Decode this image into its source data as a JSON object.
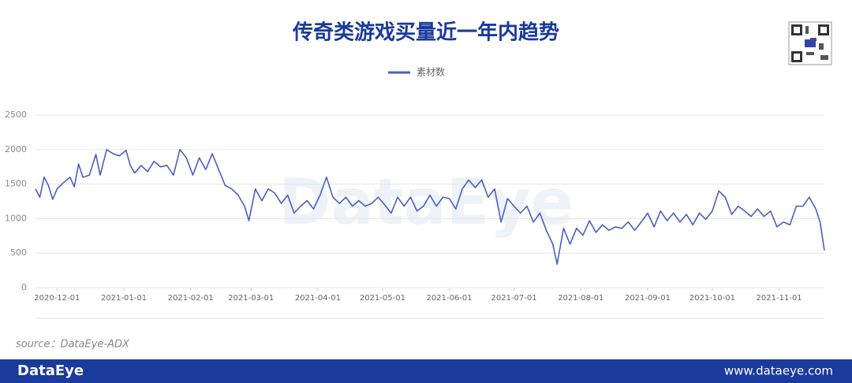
{
  "chart_data": {
    "type": "line",
    "title": "传奇类游戏买量近一年内趋势",
    "source": "source：DataEye-ADX",
    "watermark": "DataEye",
    "footer_brand": "DataEye",
    "footer_url": "www.dataeye.com",
    "grid": true,
    "legend_position": "top",
    "xlim": [
      "2020-11-21",
      "2021-11-22"
    ],
    "xticks": [
      "2020-12-01",
      "2021-01-01",
      "2021-02-01",
      "2021-03-01",
      "2021-04-01",
      "2021-05-01",
      "2021-06-01",
      "2021-07-01",
      "2021-08-01",
      "2021-09-01",
      "2021-10-01",
      "2021-11-01"
    ],
    "ylim": [
      0,
      2500
    ],
    "yticks": [
      0,
      500,
      1000,
      1500,
      2000,
      2500
    ],
    "x": [
      "2020-11-21",
      "2020-11-23",
      "2020-11-25",
      "2020-11-27",
      "2020-11-29",
      "2020-12-01",
      "2020-12-04",
      "2020-12-07",
      "2020-12-09",
      "2020-12-11",
      "2020-12-13",
      "2020-12-16",
      "2020-12-19",
      "2020-12-21",
      "2020-12-24",
      "2020-12-27",
      "2020-12-30",
      "2021-01-02",
      "2021-01-04",
      "2021-01-06",
      "2021-01-09",
      "2021-01-12",
      "2021-01-15",
      "2021-01-18",
      "2021-01-21",
      "2021-01-24",
      "2021-01-27",
      "2021-01-30",
      "2021-02-02",
      "2021-02-05",
      "2021-02-08",
      "2021-02-11",
      "2021-02-14",
      "2021-02-17",
      "2021-02-20",
      "2021-02-23",
      "2021-02-26",
      "2021-02-28",
      "2021-03-03",
      "2021-03-06",
      "2021-03-09",
      "2021-03-12",
      "2021-03-15",
      "2021-03-18",
      "2021-03-21",
      "2021-03-24",
      "2021-03-27",
      "2021-03-30",
      "2021-04-02",
      "2021-04-05",
      "2021-04-08",
      "2021-04-11",
      "2021-04-14",
      "2021-04-17",
      "2021-04-20",
      "2021-04-23",
      "2021-04-26",
      "2021-04-29",
      "2021-05-02",
      "2021-05-05",
      "2021-05-08",
      "2021-05-11",
      "2021-05-14",
      "2021-05-17",
      "2021-05-20",
      "2021-05-23",
      "2021-05-26",
      "2021-05-29",
      "2021-06-01",
      "2021-06-04",
      "2021-06-07",
      "2021-06-10",
      "2021-06-13",
      "2021-06-16",
      "2021-06-19",
      "2021-06-22",
      "2021-06-25",
      "2021-06-28",
      "2021-07-01",
      "2021-07-04",
      "2021-07-07",
      "2021-07-10",
      "2021-07-13",
      "2021-07-16",
      "2021-07-19",
      "2021-07-21",
      "2021-07-24",
      "2021-07-27",
      "2021-07-30",
      "2021-08-02",
      "2021-08-05",
      "2021-08-08",
      "2021-08-11",
      "2021-08-14",
      "2021-08-17",
      "2021-08-20",
      "2021-08-23",
      "2021-08-26",
      "2021-08-29",
      "2021-09-01",
      "2021-09-04",
      "2021-09-07",
      "2021-09-10",
      "2021-09-13",
      "2021-09-16",
      "2021-09-19",
      "2021-09-22",
      "2021-09-25",
      "2021-09-28",
      "2021-10-01",
      "2021-10-04",
      "2021-10-07",
      "2021-10-10",
      "2021-10-13",
      "2021-10-16",
      "2021-10-19",
      "2021-10-22",
      "2021-10-25",
      "2021-10-28",
      "2021-10-31",
      "2021-11-03",
      "2021-11-06",
      "2021-11-09",
      "2021-11-12",
      "2021-11-15",
      "2021-11-18",
      "2021-11-20",
      "2021-11-22"
    ],
    "series": [
      {
        "name": "素材数",
        "color": "#4a5fc1",
        "values": [
          1430,
          1310,
          1600,
          1480,
          1280,
          1430,
          1520,
          1600,
          1460,
          1790,
          1600,
          1630,
          1930,
          1630,
          2000,
          1940,
          1910,
          1990,
          1770,
          1660,
          1770,
          1680,
          1830,
          1750,
          1770,
          1630,
          2000,
          1880,
          1630,
          1880,
          1710,
          1940,
          1710,
          1480,
          1430,
          1340,
          1180,
          970,
          1430,
          1260,
          1430,
          1370,
          1220,
          1340,
          1080,
          1180,
          1260,
          1140,
          1340,
          1600,
          1310,
          1220,
          1310,
          1180,
          1260,
          1180,
          1220,
          1310,
          1200,
          1080,
          1310,
          1180,
          1310,
          1110,
          1180,
          1340,
          1180,
          1310,
          1290,
          1140,
          1430,
          1560,
          1450,
          1560,
          1310,
          1430,
          950,
          1290,
          1180,
          1080,
          1180,
          950,
          1080,
          830,
          630,
          340,
          860,
          630,
          860,
          760,
          970,
          800,
          910,
          830,
          880,
          860,
          950,
          830,
          950,
          1080,
          880,
          1110,
          970,
          1080,
          950,
          1060,
          910,
          1080,
          990,
          1110,
          1400,
          1310,
          1060,
          1180,
          1110,
          1030,
          1140,
          1030,
          1110,
          880,
          950,
          910,
          1180,
          1180,
          1310,
          1140,
          950,
          540
        ]
      }
    ]
  }
}
